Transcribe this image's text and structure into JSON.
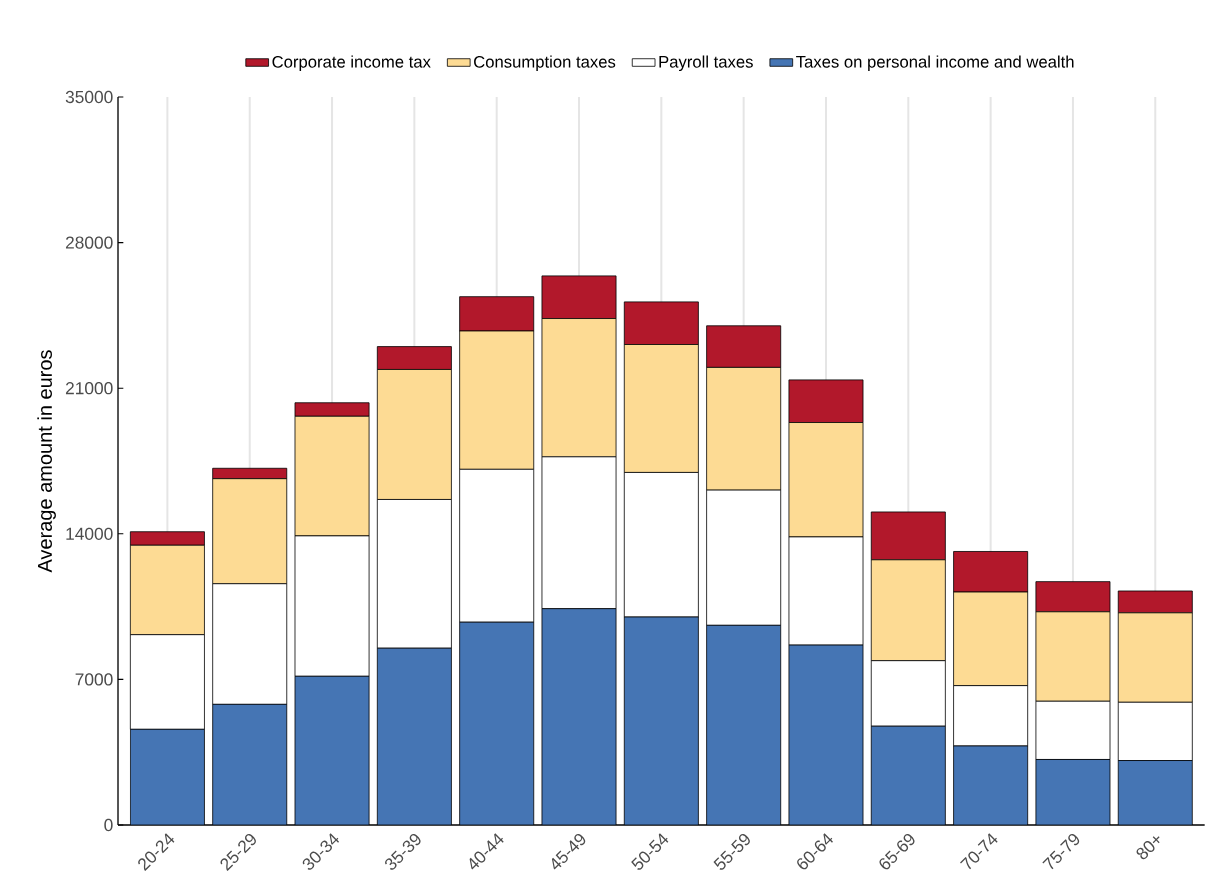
{
  "chart_data": {
    "type": "bar",
    "stacked": true,
    "ylabel": "Average amount in euros",
    "categories": [
      "20-24",
      "25-29",
      "30-34",
      "35-39",
      "40-44",
      "45-49",
      "50-54",
      "55-59",
      "60-64",
      "65-69",
      "70-74",
      "75-79",
      "80+"
    ],
    "series": [
      {
        "name": "Taxes on personal income and wealth",
        "color": "#4575b4",
        "values": [
          4600,
          5800,
          7150,
          8500,
          9750,
          10400,
          10000,
          9600,
          8650,
          4750,
          3800,
          3150,
          3100
        ]
      },
      {
        "name": "Payroll taxes",
        "color": "#ffffff",
        "values": [
          4550,
          5800,
          6750,
          7150,
          7350,
          7300,
          6950,
          6500,
          5200,
          3150,
          2900,
          2800,
          2800
        ]
      },
      {
        "name": "Consumption taxes",
        "color": "#fddb94",
        "values": [
          4300,
          5050,
          5750,
          6250,
          6650,
          6650,
          6150,
          5900,
          5500,
          4850,
          4500,
          4300,
          4300
        ]
      },
      {
        "name": "Corporate income tax",
        "color": "#b2182b",
        "values": [
          650,
          500,
          650,
          1100,
          1650,
          2050,
          2050,
          2000,
          2050,
          2300,
          1950,
          1450,
          1050
        ]
      }
    ],
    "ylim": [
      0,
      35000
    ],
    "yticks": [
      0,
      7000,
      14000,
      21000,
      28000,
      35000
    ],
    "grid": "x",
    "legend": "top"
  }
}
